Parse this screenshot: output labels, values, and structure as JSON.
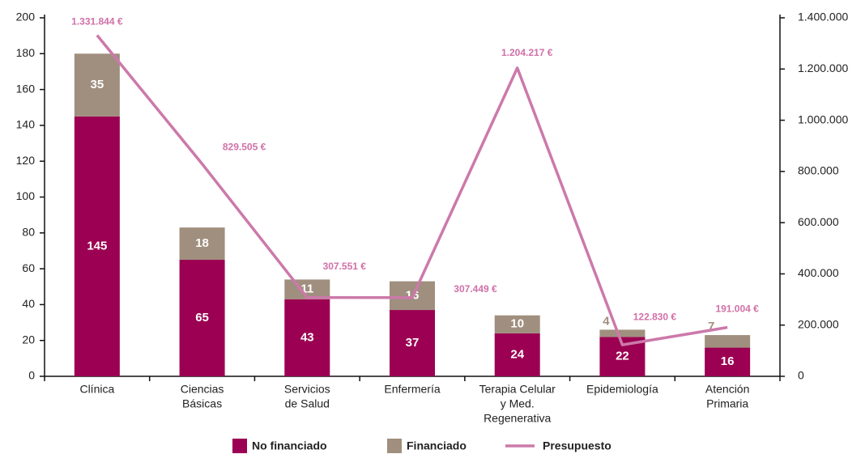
{
  "chart_data": {
    "type": "bar_line",
    "categories": [
      [
        "Clínica"
      ],
      [
        "Ciencias",
        "Básicas"
      ],
      [
        "Servicios",
        "de Salud"
      ],
      [
        "Enfermería"
      ],
      [
        "Terapia Celular",
        "y Med.",
        "Regenerativa"
      ],
      [
        "Epidemiología"
      ],
      [
        "Atención",
        "Primaria"
      ]
    ],
    "series": [
      {
        "name": "No financiado",
        "color": "#9b0052",
        "values": [
          145,
          65,
          43,
          37,
          24,
          22,
          16
        ]
      },
      {
        "name": "Financiado",
        "color": "#a08f7e",
        "values": [
          35,
          18,
          11,
          16,
          10,
          4,
          7
        ]
      },
      {
        "name": "Presupuesto",
        "color": "#cc79aa",
        "axis": "y2",
        "values": [
          1331844,
          829505,
          307551,
          307449,
          1204217,
          122830,
          191004
        ],
        "value_labels": [
          "1.331.844 €",
          "829.505 €",
          "307.551 €",
          "307.449 €",
          "1.204.217 €",
          "122.830 €",
          "191.004 €"
        ]
      }
    ],
    "ylim": [
      0,
      200
    ],
    "yticks": [
      0,
      20,
      40,
      60,
      80,
      100,
      120,
      140,
      160,
      180,
      200
    ],
    "y2lim": [
      0,
      1400000
    ],
    "y2ticks": [
      0,
      {
        "value": 200000,
        "label": "200.000"
      },
      {
        "value": 400000,
        "label": "400.000"
      },
      {
        "value": 600000,
        "label": "600.000"
      },
      {
        "value": 800000,
        "label": "800.000"
      },
      {
        "value": 1000000,
        "label": "1.000.000"
      },
      {
        "value": 1200000,
        "label": "1.200.000"
      },
      {
        "value": 1400000,
        "label": "1.400.000"
      }
    ]
  }
}
